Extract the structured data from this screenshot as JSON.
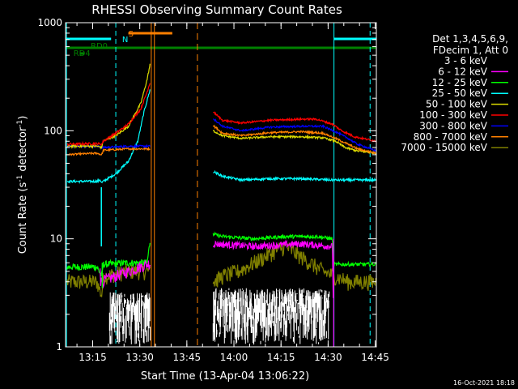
{
  "chart_data": {
    "type": "line",
    "title": "RHESSI Observing Summary Count Rates",
    "xlabel": "Start Time (13-Apr-04 13:06:22)",
    "ylabel_main": "Count Rate (s",
    "ylabel_sup": "-1",
    "ylabel_tail": " detector",
    "ylabel_sup2": "-1",
    "ylabel_end": ")",
    "x_ticks": [
      "13:15",
      "13:30",
      "13:45",
      "14:00",
      "14:15",
      "14:30",
      "14:45"
    ],
    "y_ticks": [
      "1",
      "10",
      "100",
      "1000"
    ],
    "yscale": "log",
    "xlim_minutes": [
      0,
      99
    ],
    "ylim": [
      1,
      1000
    ],
    "legend_header": [
      "Det 1,3,4,5,6,9,",
      "FDecim 1, Att 0"
    ],
    "series": [
      {
        "name": "3 - 6 keV",
        "color": "#000000"
      },
      {
        "name": "6 - 12 keV",
        "color": "#ff00ff"
      },
      {
        "name": "12 - 25 keV",
        "color": "#00ff00"
      },
      {
        "name": "25 - 50 keV",
        "color": "#00ffff"
      },
      {
        "name": "50 - 100 keV",
        "color": "#dddd00"
      },
      {
        "name": "100 - 300 keV",
        "color": "#ff0000"
      },
      {
        "name": "300 - 800 keV",
        "color": "#0000ff"
      },
      {
        "name": "800 - 7000 keV",
        "color": "#ff8000"
      },
      {
        "name": "7000 - 15000 keV",
        "color": "#808000"
      }
    ],
    "flags": [
      {
        "label": "N",
        "color": "#00ffff"
      },
      {
        "label": "S",
        "color": "#ff8000"
      },
      {
        "label": "RD0",
        "color": "#008000"
      },
      {
        "label": "RD4",
        "color": "#008000"
      }
    ],
    "footer_date": "16-Oct-2021 18:18"
  }
}
